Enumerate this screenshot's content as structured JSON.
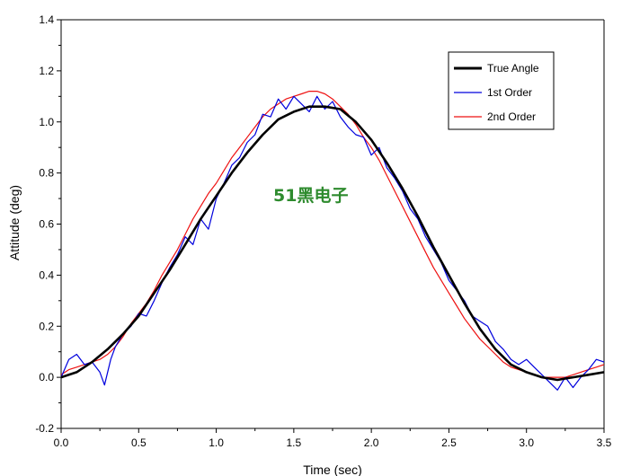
{
  "chart_data": {
    "type": "line",
    "title": "",
    "xlabel": "Time (sec)",
    "ylabel": "Attitude (deg)",
    "xlim": [
      0.0,
      3.5
    ],
    "ylim": [
      -0.2,
      1.4
    ],
    "xticks": [
      0.0,
      0.5,
      1.0,
      1.5,
      2.0,
      2.5,
      3.0,
      3.5
    ],
    "xtick_labels": [
      "0.0",
      "0.5",
      "1.0",
      "1.5",
      "2.0",
      "2.5",
      "3.0",
      "3.5"
    ],
    "yticks": [
      -0.2,
      0.0,
      0.2,
      0.4,
      0.6,
      0.8,
      1.0,
      1.2,
      1.4
    ],
    "ytick_labels": [
      "-0.2",
      "0.0",
      "0.2",
      "0.4",
      "0.6",
      "0.8",
      "1.0",
      "1.2",
      "1.4"
    ],
    "grid": false,
    "legend_position": "top-right",
    "watermark": "51黑电子",
    "series": [
      {
        "name": "True Angle",
        "color": "#000000",
        "x": [
          0.0,
          0.1,
          0.2,
          0.3,
          0.4,
          0.5,
          0.6,
          0.7,
          0.8,
          0.9,
          1.0,
          1.1,
          1.2,
          1.3,
          1.4,
          1.5,
          1.6,
          1.7,
          1.8,
          1.9,
          2.0,
          2.1,
          2.2,
          2.3,
          2.4,
          2.5,
          2.6,
          2.7,
          2.8,
          2.9,
          3.0,
          3.1,
          3.2,
          3.3,
          3.4,
          3.5
        ],
        "y": [
          0.0,
          0.02,
          0.06,
          0.11,
          0.17,
          0.24,
          0.33,
          0.42,
          0.52,
          0.62,
          0.71,
          0.8,
          0.88,
          0.95,
          1.01,
          1.04,
          1.06,
          1.06,
          1.05,
          1.0,
          0.93,
          0.84,
          0.74,
          0.63,
          0.51,
          0.4,
          0.29,
          0.19,
          0.11,
          0.05,
          0.02,
          0.0,
          -0.01,
          0.0,
          0.01,
          0.02
        ]
      },
      {
        "name": "1st Order",
        "color": "#0000dd",
        "x": [
          0.0,
          0.05,
          0.1,
          0.15,
          0.2,
          0.25,
          0.28,
          0.32,
          0.35,
          0.4,
          0.45,
          0.5,
          0.55,
          0.6,
          0.65,
          0.7,
          0.75,
          0.8,
          0.85,
          0.9,
          0.95,
          1.0,
          1.05,
          1.1,
          1.15,
          1.2,
          1.25,
          1.3,
          1.35,
          1.4,
          1.45,
          1.5,
          1.55,
          1.6,
          1.65,
          1.7,
          1.75,
          1.8,
          1.85,
          1.9,
          1.95,
          2.0,
          2.05,
          2.1,
          2.15,
          2.2,
          2.25,
          2.3,
          2.35,
          2.4,
          2.45,
          2.5,
          2.55,
          2.6,
          2.65,
          2.7,
          2.75,
          2.8,
          2.85,
          2.9,
          2.95,
          3.0,
          3.05,
          3.1,
          3.15,
          3.2,
          3.25,
          3.3,
          3.35,
          3.4,
          3.45,
          3.5
        ],
        "y": [
          0.0,
          0.07,
          0.09,
          0.05,
          0.06,
          0.02,
          -0.03,
          0.07,
          0.12,
          0.17,
          0.2,
          0.25,
          0.24,
          0.3,
          0.37,
          0.43,
          0.48,
          0.55,
          0.52,
          0.62,
          0.58,
          0.7,
          0.76,
          0.83,
          0.86,
          0.92,
          0.95,
          1.03,
          1.02,
          1.09,
          1.05,
          1.1,
          1.07,
          1.04,
          1.1,
          1.05,
          1.08,
          1.02,
          0.98,
          0.95,
          0.94,
          0.87,
          0.9,
          0.82,
          0.78,
          0.73,
          0.66,
          0.62,
          0.55,
          0.5,
          0.45,
          0.38,
          0.34,
          0.3,
          0.24,
          0.22,
          0.2,
          0.14,
          0.11,
          0.07,
          0.05,
          0.07,
          0.04,
          0.01,
          -0.02,
          -0.05,
          0.0,
          -0.04,
          0.0,
          0.03,
          0.07,
          0.06
        ]
      },
      {
        "name": "2nd Order",
        "color": "#ee1111",
        "x": [
          0.0,
          0.05,
          0.1,
          0.15,
          0.2,
          0.25,
          0.3,
          0.35,
          0.4,
          0.45,
          0.5,
          0.55,
          0.6,
          0.65,
          0.7,
          0.75,
          0.8,
          0.85,
          0.9,
          0.95,
          1.0,
          1.05,
          1.1,
          1.15,
          1.2,
          1.25,
          1.3,
          1.35,
          1.4,
          1.45,
          1.5,
          1.55,
          1.6,
          1.65,
          1.7,
          1.75,
          1.8,
          1.85,
          1.9,
          1.95,
          2.0,
          2.05,
          2.1,
          2.15,
          2.2,
          2.25,
          2.3,
          2.35,
          2.4,
          2.45,
          2.5,
          2.55,
          2.6,
          2.65,
          2.7,
          2.75,
          2.8,
          2.85,
          2.9,
          2.95,
          3.0,
          3.05,
          3.1,
          3.15,
          3.2,
          3.25,
          3.3,
          3.35,
          3.4,
          3.45,
          3.5
        ],
        "y": [
          0.01,
          0.03,
          0.04,
          0.05,
          0.06,
          0.07,
          0.09,
          0.12,
          0.16,
          0.21,
          0.25,
          0.29,
          0.34,
          0.4,
          0.45,
          0.5,
          0.56,
          0.62,
          0.67,
          0.72,
          0.76,
          0.81,
          0.86,
          0.9,
          0.94,
          0.98,
          1.02,
          1.05,
          1.07,
          1.09,
          1.1,
          1.11,
          1.12,
          1.12,
          1.11,
          1.09,
          1.06,
          1.03,
          0.99,
          0.94,
          0.9,
          0.85,
          0.79,
          0.73,
          0.67,
          0.61,
          0.55,
          0.49,
          0.43,
          0.38,
          0.33,
          0.28,
          0.23,
          0.19,
          0.15,
          0.12,
          0.09,
          0.06,
          0.04,
          0.03,
          0.02,
          0.01,
          0.0,
          0.0,
          0.0,
          0.0,
          0.01,
          0.02,
          0.03,
          0.04,
          0.05
        ]
      }
    ]
  }
}
